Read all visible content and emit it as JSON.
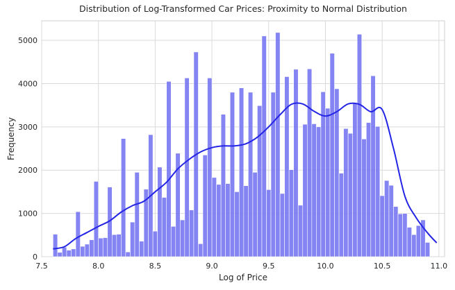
{
  "chart_data": {
    "type": "bar",
    "subtype": "histogram with KDE line",
    "title": "Distribution of Log-Transformed Car Prices: Proximity to Normal Distribution",
    "xlabel": "Log of Price",
    "ylabel": "Frequency",
    "xlim": [
      7.5,
      11.05
    ],
    "ylim": [
      0,
      5450
    ],
    "x_ticks": [
      "7.5",
      "8.0",
      "8.5",
      "9.0",
      "9.5",
      "10.0",
      "10.5",
      "11.0"
    ],
    "y_ticks": [
      "0",
      "1000",
      "2000",
      "3000",
      "4000",
      "5000"
    ],
    "grid": true,
    "bar_color": "#6f6ff0",
    "line_color": "#2424e6",
    "bins": {
      "start": 7.6,
      "width": 0.04,
      "counts": [
        520,
        100,
        220,
        150,
        180,
        1040,
        240,
        290,
        390,
        1740,
        430,
        440,
        1610,
        510,
        520,
        2730,
        110,
        800,
        1950,
        360,
        1560,
        2820,
        590,
        2070,
        1370,
        4050,
        700,
        2390,
        850,
        4130,
        1080,
        4730,
        300,
        2350,
        4130,
        1830,
        1670,
        3290,
        1690,
        3800,
        1500,
        3900,
        1640,
        3800,
        1950,
        3490,
        5100,
        1550,
        3800,
        5180,
        1460,
        4160,
        2010,
        4330,
        1190,
        3060,
        4340,
        3070,
        3000,
        3810,
        3430,
        4700,
        3880,
        1930,
        2960,
        2850,
        3560,
        5140,
        2720,
        3100,
        4180,
        3010,
        1410,
        1760,
        1650,
        1160,
        990,
        1000,
        680,
        510,
        720,
        850,
        330
      ]
    },
    "kde": {
      "x": [
        7.6,
        7.7,
        7.8,
        7.9,
        8.0,
        8.1,
        8.2,
        8.3,
        8.4,
        8.5,
        8.6,
        8.7,
        8.8,
        8.9,
        9.0,
        9.1,
        9.2,
        9.3,
        9.4,
        9.5,
        9.6,
        9.7,
        9.8,
        9.9,
        10.0,
        10.1,
        10.2,
        10.3,
        10.4,
        10.5,
        10.6,
        10.7,
        10.8,
        10.9,
        10.98
      ],
      "y": [
        180,
        230,
        420,
        560,
        700,
        830,
        1030,
        1180,
        1280,
        1500,
        1720,
        2030,
        2250,
        2420,
        2520,
        2560,
        2560,
        2610,
        2760,
        3000,
        3280,
        3520,
        3530,
        3360,
        3250,
        3350,
        3530,
        3520,
        3350,
        3400,
        2500,
        1400,
        900,
        550,
        320
      ]
    }
  }
}
